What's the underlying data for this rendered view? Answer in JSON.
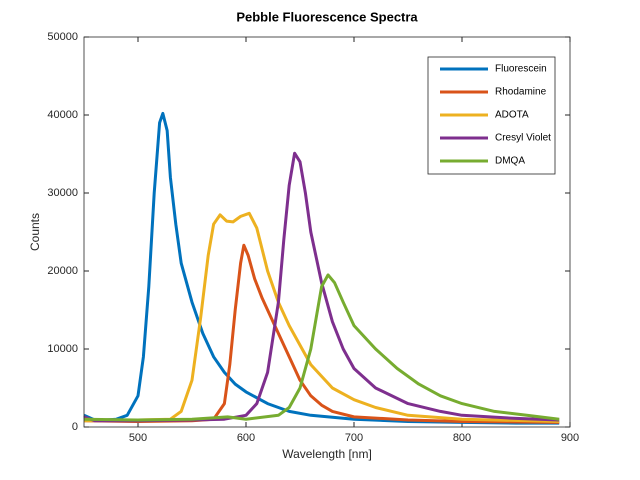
{
  "chart_data": {
    "type": "line",
    "title": "Pebble Fluorescence Spectra",
    "x_label": "Wavelength [nm]",
    "y_label": "Counts",
    "xlim": [
      450,
      900
    ],
    "xticks": [
      500,
      600,
      700,
      800,
      900
    ],
    "ylim": [
      0,
      50000
    ],
    "yticks": [
      0,
      10000,
      20000,
      30000,
      40000,
      50000
    ],
    "grid": false,
    "legend_position": "top-right",
    "series": [
      {
        "name": "Fluorescein",
        "color": "#0072BD",
        "x": [
          450,
          460,
          470,
          480,
          490,
          500,
          505,
          510,
          515,
          520,
          523,
          527,
          530,
          535,
          540,
          550,
          560,
          570,
          580,
          590,
          600,
          620,
          640,
          660,
          700,
          750,
          800,
          850,
          890
        ],
        "values": [
          1500,
          900,
          900,
          1000,
          1500,
          4000,
          9000,
          18000,
          30000,
          39000,
          40200,
          38000,
          32000,
          26000,
          21000,
          16000,
          12000,
          9000,
          7000,
          5500,
          4500,
          3000,
          2000,
          1500,
          1000,
          700,
          600,
          500,
          500
        ]
      },
      {
        "name": "Rhodamine",
        "color": "#D95319",
        "x": [
          450,
          500,
          550,
          570,
          580,
          585,
          590,
          595,
          598,
          602,
          608,
          615,
          625,
          640,
          650,
          660,
          670,
          680,
          700,
          750,
          800,
          890
        ],
        "values": [
          800,
          700,
          800,
          1000,
          3000,
          8000,
          15000,
          21000,
          23300,
          22000,
          19000,
          16500,
          13500,
          9000,
          6000,
          4000,
          2800,
          2000,
          1300,
          900,
          700,
          600
        ]
      },
      {
        "name": "ADOTA",
        "color": "#EDB120",
        "x": [
          450,
          500,
          530,
          540,
          550,
          558,
          565,
          570,
          576,
          582,
          588,
          595,
          603,
          610,
          620,
          630,
          640,
          650,
          660,
          680,
          700,
          720,
          750,
          800,
          890
        ],
        "values": [
          800,
          900,
          1000,
          2000,
          6000,
          14000,
          22000,
          26000,
          27200,
          26400,
          26300,
          27000,
          27400,
          25500,
          20000,
          16000,
          13000,
          10500,
          8000,
          5000,
          3500,
          2500,
          1500,
          1000,
          700
        ]
      },
      {
        "name": "Cresyl Violet",
        "color": "#7E2F8E",
        "x": [
          450,
          460,
          500,
          550,
          580,
          600,
          610,
          620,
          630,
          635,
          640,
          645,
          650,
          655,
          660,
          670,
          680,
          690,
          700,
          720,
          750,
          780,
          800,
          850,
          890
        ],
        "values": [
          1300,
          800,
          800,
          900,
          1000,
          1500,
          3000,
          7000,
          16000,
          24000,
          31000,
          35100,
          34000,
          30000,
          25000,
          18500,
          13500,
          10000,
          7500,
          5000,
          3000,
          2000,
          1500,
          1100,
          900
        ]
      },
      {
        "name": "DMQA",
        "color": "#77AC30",
        "x": [
          450,
          500,
          550,
          583,
          600,
          630,
          640,
          650,
          660,
          665,
          670,
          676,
          682,
          690,
          700,
          720,
          740,
          760,
          780,
          800,
          830,
          860,
          890
        ],
        "values": [
          1000,
          900,
          1000,
          1300,
          1000,
          1500,
          2500,
          5000,
          10000,
          14000,
          18000,
          19500,
          18500,
          16000,
          13000,
          10000,
          7500,
          5500,
          4000,
          3000,
          2000,
          1500,
          1000
        ]
      }
    ]
  }
}
